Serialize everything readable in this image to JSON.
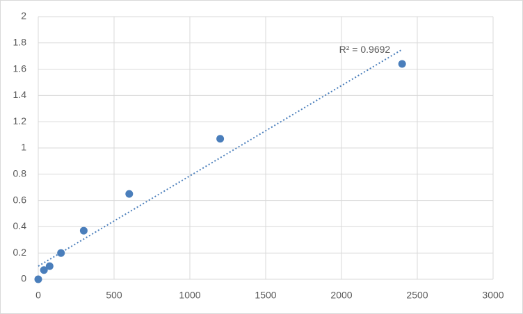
{
  "chart_data": {
    "type": "scatter",
    "x": [
      0,
      37.5,
      75,
      150,
      300,
      600,
      1200,
      2400
    ],
    "series": [
      {
        "color": "#4a7ebb",
        "values": [
          0,
          0.07,
          0.1,
          0.2,
          0.37,
          0.65,
          1.07,
          1.64
        ]
      }
    ],
    "xlim": [
      0,
      3000
    ],
    "xticks": [
      0,
      500,
      1000,
      1500,
      2000,
      2500,
      3000
    ],
    "ylim": [
      0,
      2
    ],
    "yticks": [
      0,
      0.2,
      0.4,
      0.6,
      0.8,
      1,
      1.2,
      1.4,
      1.6,
      1.8,
      2
    ],
    "grid": true,
    "trendline": {
      "x": [
        0,
        2400
      ],
      "y": [
        0.1,
        1.75
      ],
      "color": "#4a7ebb",
      "label": "R² = 0.9692"
    }
  }
}
